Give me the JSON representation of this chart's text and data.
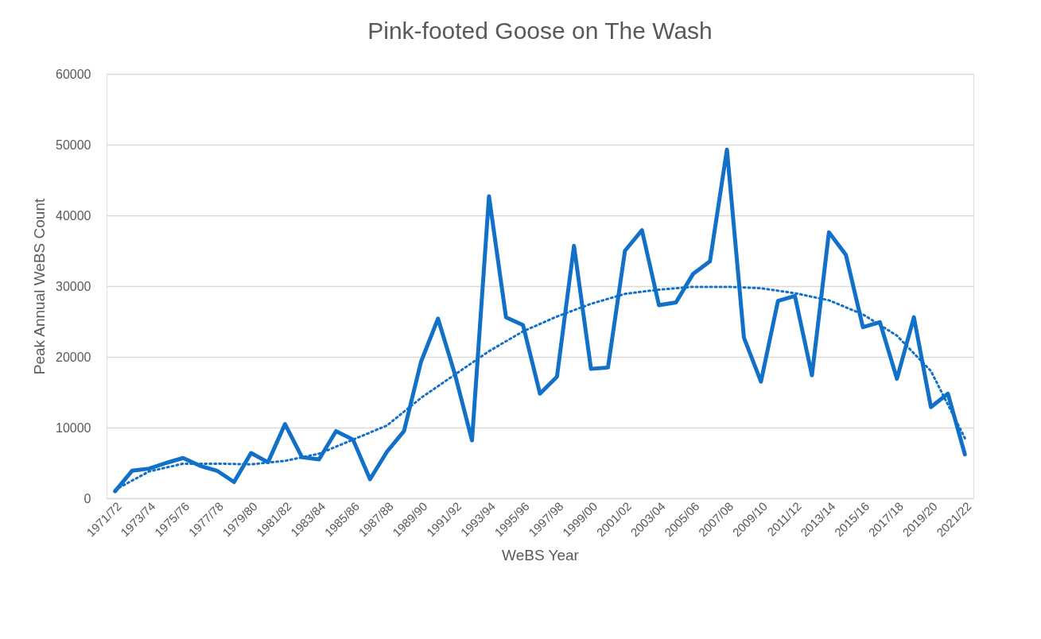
{
  "chart_data": {
    "type": "line",
    "title": "Pink-footed Goose on The Wash",
    "xlabel": "WeBS Year",
    "ylabel": "Peak Annual WeBS Count",
    "categories": [
      "1971/72",
      null,
      "1973/74",
      null,
      "1975/76",
      null,
      "1977/78",
      null,
      "1979/80",
      null,
      "1981/82",
      null,
      "1983/84",
      null,
      "1985/86",
      null,
      "1987/88",
      null,
      "1989/90",
      null,
      "1991/92",
      null,
      "1993/94",
      null,
      "1995/96",
      null,
      "1997/98",
      null,
      "1999/00",
      null,
      "2001/02",
      null,
      "2003/04",
      null,
      "2005/06",
      null,
      "2007/08",
      null,
      "2009/10",
      null,
      "2011/12",
      null,
      "2013/14",
      null,
      "2015/16",
      null,
      "2017/18",
      null,
      "2019/20",
      null,
      "2021/22"
    ],
    "series": [
      {
        "color": "#1170c8",
        "line_style": "solid",
        "values": [
          1000,
          3900,
          4200,
          5000,
          5700,
          4600,
          3900,
          2300,
          6400,
          5100,
          10500,
          5800,
          5500,
          9500,
          8300,
          2700,
          6600,
          9500,
          19300,
          25400,
          17500,
          8200,
          42700,
          25600,
          24500,
          14800,
          17200,
          35700,
          18300,
          18500,
          35000,
          37900,
          27300,
          27700,
          31700,
          33500,
          49300,
          22700,
          16500,
          27900,
          28600,
          17400,
          37600,
          34400,
          24200,
          24900,
          16900,
          25600,
          12900,
          14800,
          6200
        ]
      },
      {
        "type": "line",
        "color": "#1170c8",
        "line_style": "dotted",
        "x": [
          "1971/72",
          "1973/74",
          "1975/76",
          "1977/78",
          "1979/80",
          "1981/82",
          "1983/84",
          "1985/86",
          "1987/88",
          "1989/90",
          "1991/92",
          "1993/94",
          "1995/96",
          "1997/98",
          "1999/00",
          "2001/02",
          "2003/04",
          "2005/06",
          "2007/08",
          "2009/10",
          "2011/12",
          "2013/14",
          "2015/16",
          "2017/18",
          "2019/20",
          "2021/22"
        ],
        "values": [
          1200,
          3800,
          4900,
          4900,
          4800,
          5300,
          6300,
          8300,
          10300,
          14200,
          17500,
          20800,
          23600,
          25700,
          27500,
          28900,
          29500,
          29900,
          29900,
          29700,
          29000,
          28000,
          26000,
          23000,
          18000,
          8500
        ]
      }
    ],
    "ylim": [
      0,
      60000
    ],
    "yticks": [
      0,
      10000,
      20000,
      30000,
      40000,
      50000,
      60000
    ],
    "grid": "y",
    "marker": "none"
  }
}
